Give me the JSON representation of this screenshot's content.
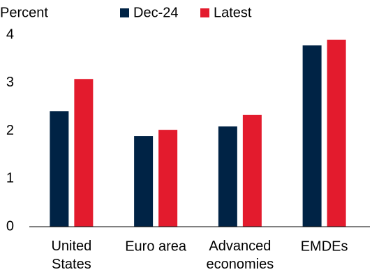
{
  "chart_data": {
    "type": "bar",
    "y_label": "Percent",
    "categories": [
      "United States",
      "Euro area",
      "Advanced economies",
      "EMDEs"
    ],
    "series": [
      {
        "name": "Dec-24",
        "color": "#002345",
        "values": [
          2.41,
          1.89,
          2.09,
          3.78
        ]
      },
      {
        "name": "Latest",
        "color": "#e31b2d",
        "values": [
          3.08,
          2.02,
          2.33,
          3.9
        ]
      }
    ],
    "ylim": [
      0,
      4
    ],
    "yticks": [
      0,
      1,
      2,
      3,
      4
    ],
    "grid": false,
    "legend": "top"
  }
}
